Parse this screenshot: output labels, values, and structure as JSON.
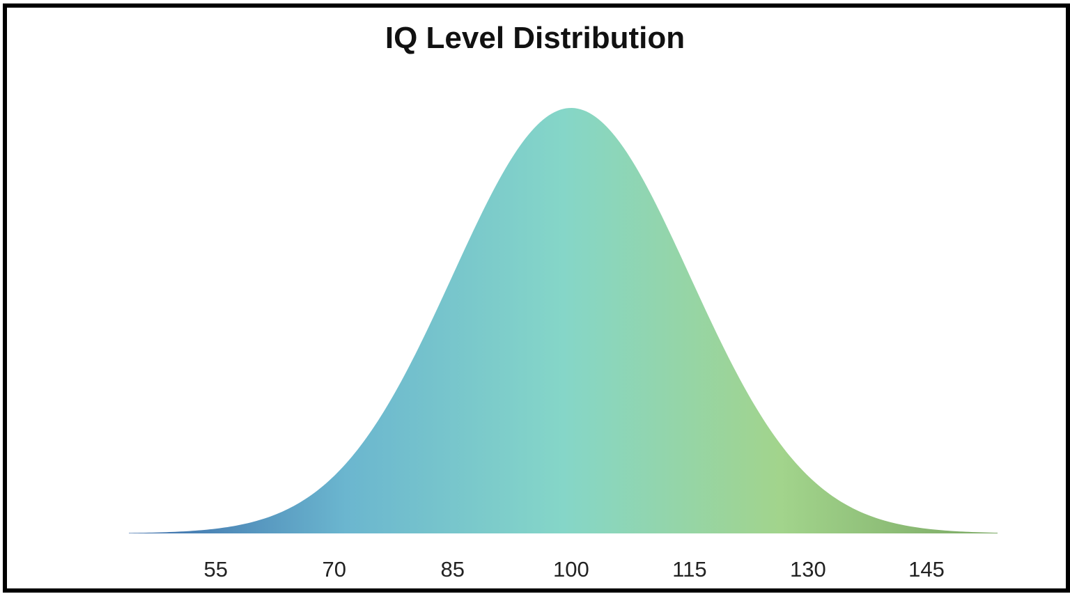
{
  "chart_data": {
    "type": "area",
    "title": "IQ Level Distribution",
    "xlabel": "",
    "ylabel": "",
    "distribution": "normal",
    "mean": 100,
    "std_dev": 15,
    "xlim": [
      44,
      154
    ],
    "xticks": [
      55,
      70,
      85,
      100,
      115,
      130,
      145
    ],
    "xtick_labels": [
      "55",
      "70",
      "85",
      "100",
      "115",
      "130",
      "145"
    ],
    "grid": false,
    "legend": "none",
    "fill_gradient": [
      "#3a6aa8",
      "#6bb6cf",
      "#85d6c8",
      "#a2d48c",
      "#7aa863"
    ]
  }
}
